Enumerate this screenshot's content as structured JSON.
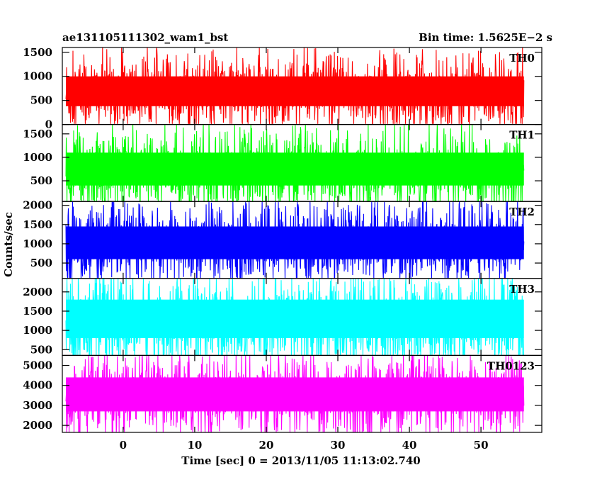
{
  "header": {
    "left_title": "ae131105111302_wam1_bst",
    "right_title": "Bin time: 1.5625E−2 s"
  },
  "chart_data": {
    "type": "line",
    "title": "ae131105111302_wam1_bst",
    "subtitle": "Bin time: 1.5625E−2 s",
    "xlabel": "Time [sec] 0 = 2013/11/05 11:13:02.740",
    "ylabel": "Counts/sec",
    "xlim": [
      -8.5,
      58.5
    ],
    "x_ticks": [
      0,
      10,
      20,
      30,
      40,
      50
    ],
    "x_tick_labels": [
      "0",
      "10",
      "20",
      "30",
      "40",
      "50"
    ],
    "data_x_range": [
      -8,
      56
    ],
    "bin_time": 0.015625,
    "grid": false,
    "panels": [
      {
        "name": "TH0",
        "color": "#ff0000",
        "ylim": [
          0,
          1600
        ],
        "y_ticks": [
          0,
          500,
          1000,
          1500
        ],
        "y_tick_labels": [
          "0",
          "500",
          "1000",
          "1500"
        ],
        "mean": 650,
        "band_low": 380,
        "band_high": 1000,
        "min": 10,
        "max": 1600
      },
      {
        "name": "TH1",
        "color": "#00ff00",
        "ylim": [
          60,
          1700
        ],
        "y_ticks": [
          500,
          1000,
          1500
        ],
        "y_tick_labels": [
          "500",
          "1000",
          "1500"
        ],
        "mean": 700,
        "band_low": 400,
        "band_high": 1100,
        "min": 60,
        "max": 1700
      },
      {
        "name": "TH2",
        "color": "#0000ff",
        "ylim": [
          100,
          2100
        ],
        "y_ticks": [
          500,
          1000,
          1500,
          2000
        ],
        "y_tick_labels": [
          "500",
          "1000",
          "1500",
          "2000"
        ],
        "mean": 1000,
        "band_low": 600,
        "band_high": 1450,
        "min": 100,
        "max": 2100
      },
      {
        "name": "TH3",
        "color": "#00ffff",
        "ylim": [
          350,
          2350
        ],
        "y_ticks": [
          500,
          1000,
          1500,
          2000
        ],
        "y_tick_labels": [
          "500",
          "1000",
          "1500",
          "2000"
        ],
        "mean": 1200,
        "band_low": 800,
        "band_high": 1800,
        "min": 350,
        "max": 2350
      },
      {
        "name": "TH0123",
        "color": "#ff00ff",
        "ylim": [
          1650,
          5500
        ],
        "y_ticks": [
          2000,
          3000,
          4000,
          5000
        ],
        "y_tick_labels": [
          "2000",
          "3000",
          "4000",
          "5000"
        ],
        "mean": 3500,
        "band_low": 2700,
        "band_high": 4400,
        "min": 1650,
        "max": 5500
      }
    ]
  }
}
